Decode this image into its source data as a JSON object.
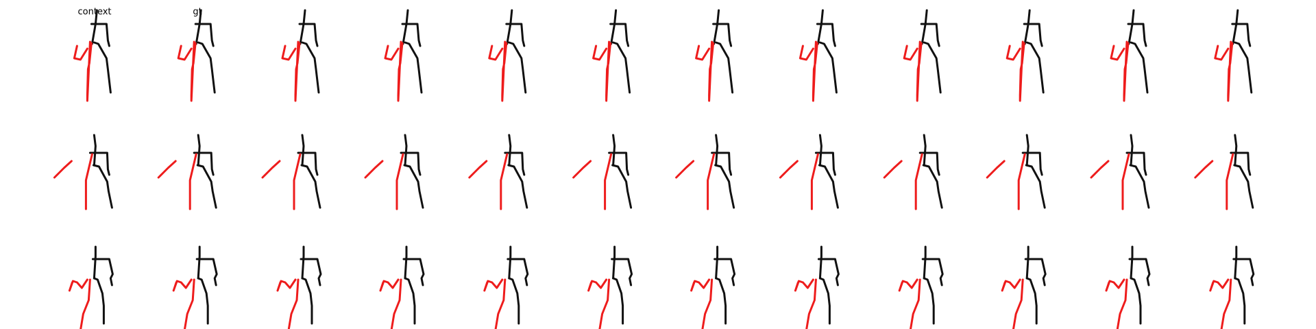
{
  "figure": {
    "column_titles": {
      "context": "context",
      "gt": "gt"
    },
    "layout": {
      "rows": 3,
      "columns": 12
    },
    "colors": {
      "left_side": "#ee1c1c",
      "right_side": "#111111",
      "background": "#ffffff"
    },
    "rows": [
      {
        "pose": "arm-raised-up"
      },
      {
        "pose": "arm-extended-down"
      },
      {
        "pose": "arm-raised-up-knee-bent"
      }
    ]
  }
}
